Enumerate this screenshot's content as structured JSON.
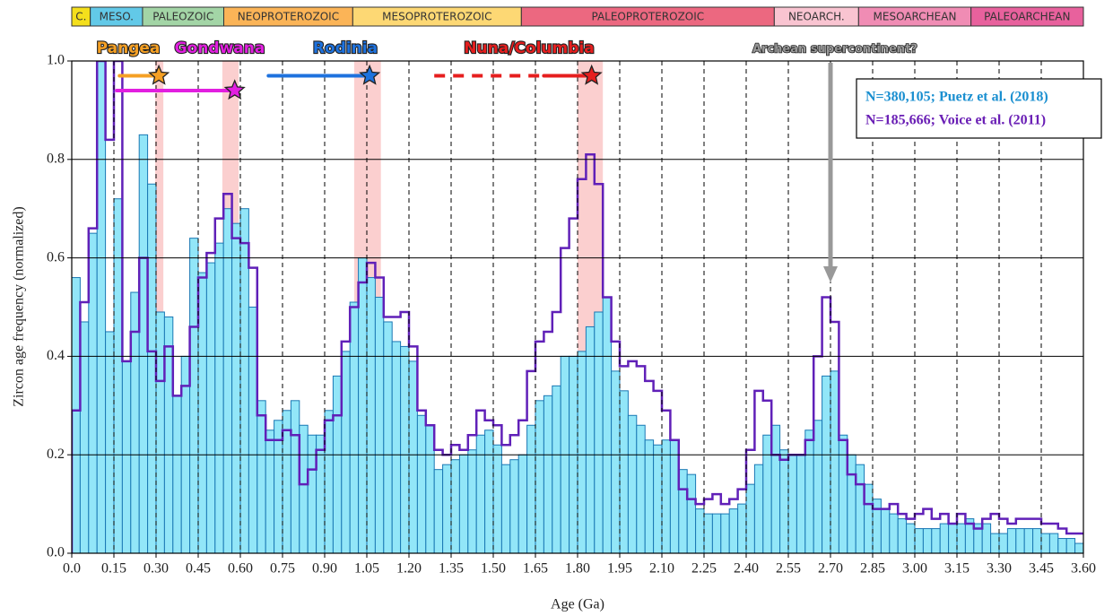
{
  "chart_data": {
    "type": "histogram",
    "xlabel": "Age (Ga)",
    "ylabel": "Zircon age frequency (normalized)",
    "xlim": [
      0,
      3.6
    ],
    "ylim": [
      0,
      1.0
    ],
    "xticks": [
      {
        "value": 0,
        "label": "0.0"
      },
      0.15,
      {
        "value": 0.3,
        "label": "0.30"
      },
      0.45,
      {
        "value": 0.6,
        "label": "0.60"
      },
      0.75,
      {
        "value": 0.9,
        "label": "0.90"
      },
      1.05,
      {
        "value": 1.2,
        "label": "1.20"
      },
      1.35,
      {
        "value": 1.5,
        "label": "1.50"
      },
      1.65,
      {
        "value": 1.8,
        "label": "1.80"
      },
      1.95,
      {
        "value": 2.1,
        "label": "2.10"
      },
      2.25,
      {
        "value": 2.4,
        "label": "2.40"
      },
      2.55,
      {
        "value": 2.7,
        "label": "2.70"
      },
      2.85,
      {
        "value": 3.0,
        "label": "3.00"
      },
      3.15,
      {
        "value": 3.3,
        "label": "3.30"
      },
      3.45,
      {
        "value": 3.6,
        "label": "3.60"
      }
    ],
    "yticks": [
      {
        "value": 0,
        "label": "0.0"
      },
      0.2,
      0.4,
      0.6,
      0.8,
      {
        "value": 1.0,
        "label": "1.0"
      }
    ],
    "grid": true,
    "legend": "upper right",
    "bins": [
      0,
      0.03,
      0.06,
      0.09,
      0.12,
      0.15,
      0.18,
      0.21,
      0.24,
      0.27,
      0.3,
      0.33,
      0.36,
      0.39,
      0.42,
      0.45,
      0.48,
      0.51,
      0.54,
      0.57,
      0.6,
      0.63,
      0.66,
      0.69,
      0.72,
      0.75,
      0.78,
      0.81,
      0.84,
      0.87,
      0.9,
      0.93,
      0.96,
      0.99,
      1.02,
      1.05,
      1.08,
      1.11,
      1.14,
      1.17,
      1.2,
      1.23,
      1.26,
      1.29,
      1.32,
      1.35,
      1.38,
      1.41,
      1.44,
      1.47,
      1.5,
      1.53,
      1.56,
      1.59,
      1.62,
      1.65,
      1.68,
      1.71,
      1.74,
      1.77,
      1.8,
      1.83,
      1.86,
      1.89,
      1.92,
      1.95,
      1.98,
      2.01,
      2.04,
      2.07,
      2.1,
      2.13,
      2.16,
      2.19,
      2.22,
      2.25,
      2.28,
      2.31,
      2.34,
      2.37,
      2.4,
      2.43,
      2.46,
      2.49,
      2.52,
      2.55,
      2.58,
      2.61,
      2.64,
      2.67,
      2.7,
      2.73,
      2.76,
      2.79,
      2.82,
      2.85,
      2.88,
      2.91,
      2.94,
      2.97,
      3.0,
      3.03,
      3.06,
      3.09,
      3.12,
      3.15,
      3.18,
      3.21,
      3.24,
      3.27,
      3.3,
      3.33,
      3.36,
      3.39,
      3.42,
      3.45,
      3.48,
      3.51,
      3.54,
      3.57,
      3.6
    ],
    "series": [
      {
        "name": "N=380,105; Puetz et al. (2018)",
        "style": "bar",
        "color": "#92e6f8",
        "edge_color": "#1a78b4",
        "legend_color": "#1a8fd0",
        "values": [
          0.56,
          0.47,
          0.65,
          1.0,
          0.45,
          0.72,
          0.39,
          0.53,
          0.85,
          0.75,
          0.49,
          0.48,
          0.32,
          0.4,
          0.64,
          0.57,
          0.59,
          0.63,
          0.7,
          0.67,
          0.7,
          0.5,
          0.31,
          0.25,
          0.27,
          0.29,
          0.31,
          0.26,
          0.24,
          0.24,
          0.29,
          0.36,
          0.41,
          0.51,
          0.6,
          0.56,
          0.52,
          0.47,
          0.43,
          0.42,
          0.39,
          0.28,
          0.26,
          0.17,
          0.18,
          0.19,
          0.2,
          0.21,
          0.24,
          0.25,
          0.22,
          0.18,
          0.19,
          0.2,
          0.26,
          0.31,
          0.32,
          0.34,
          0.4,
          0.4,
          0.41,
          0.46,
          0.49,
          0.52,
          0.37,
          0.33,
          0.28,
          0.26,
          0.23,
          0.22,
          0.23,
          0.23,
          0.17,
          0.16,
          0.09,
          0.08,
          0.08,
          0.08,
          0.09,
          0.1,
          0.14,
          0.18,
          0.24,
          0.26,
          0.21,
          0.2,
          0.2,
          0.25,
          0.27,
          0.36,
          0.37,
          0.24,
          0.2,
          0.18,
          0.14,
          0.11,
          0.09,
          0.08,
          0.07,
          0.06,
          0.05,
          0.05,
          0.05,
          0.06,
          0.06,
          0.06,
          0.07,
          0.06,
          0.06,
          0.04,
          0.04,
          0.05,
          0.05,
          0.05,
          0.05,
          0.04,
          0.04,
          0.03,
          0.03,
          0.02
        ]
      },
      {
        "name": "N=185,666; Voice et al. (2011)",
        "style": "step",
        "color": "#6020b8",
        "legend_color": "#6a1fb5",
        "values": [
          0.29,
          0.51,
          0.66,
          1.0,
          0.84,
          1.0,
          0.39,
          0.45,
          0.6,
          0.41,
          0.35,
          0.42,
          0.32,
          0.34,
          0.46,
          0.56,
          0.61,
          0.68,
          0.73,
          0.64,
          0.63,
          0.58,
          0.28,
          0.23,
          0.23,
          0.25,
          0.24,
          0.14,
          0.17,
          0.21,
          0.27,
          0.28,
          0.43,
          0.5,
          0.55,
          0.59,
          0.56,
          0.48,
          0.48,
          0.49,
          0.42,
          0.29,
          0.26,
          0.21,
          0.2,
          0.22,
          0.21,
          0.24,
          0.29,
          0.27,
          0.26,
          0.22,
          0.24,
          0.27,
          0.37,
          0.43,
          0.45,
          0.49,
          0.62,
          0.68,
          0.76,
          0.81,
          0.75,
          0.52,
          0.43,
          0.38,
          0.39,
          0.38,
          0.35,
          0.33,
          0.29,
          0.23,
          0.13,
          0.11,
          0.1,
          0.11,
          0.12,
          0.1,
          0.11,
          0.13,
          0.21,
          0.33,
          0.31,
          0.2,
          0.19,
          0.2,
          0.2,
          0.23,
          0.4,
          0.52,
          0.47,
          0.23,
          0.16,
          0.14,
          0.1,
          0.09,
          0.09,
          0.1,
          0.08,
          0.07,
          0.08,
          0.09,
          0.07,
          0.08,
          0.06,
          0.08,
          0.06,
          0.05,
          0.07,
          0.08,
          0.07,
          0.06,
          0.07,
          0.07,
          0.07,
          0.06,
          0.06,
          0.05,
          0.04,
          0.04
        ]
      }
    ],
    "eras": [
      {
        "name": "C.",
        "start": 0,
        "end": 0.066,
        "color": "#f4df1c"
      },
      {
        "name": "MESO.",
        "start": 0.066,
        "end": 0.252,
        "color": "#62c9e8"
      },
      {
        "name": "PALEOZOIC",
        "start": 0.252,
        "end": 0.541,
        "color": "#a3d5a6"
      },
      {
        "name": "NEOPROTEROZOIC",
        "start": 0.541,
        "end": 1.0,
        "color": "#fbb457"
      },
      {
        "name": "MESOPROTEROZOIC",
        "start": 1.0,
        "end": 1.6,
        "color": "#fdd874"
      },
      {
        "name": "PALEOPROTEROZOIC",
        "start": 1.6,
        "end": 2.5,
        "color": "#ec6880"
      },
      {
        "name": "NEOARCH.",
        "start": 2.5,
        "end": 2.8,
        "color": "#f9c4d1"
      },
      {
        "name": "MESOARCHEAN",
        "start": 2.8,
        "end": 3.2,
        "color": "#f08cb4"
      },
      {
        "name": "PALEOARCHEAN",
        "start": 3.2,
        "end": 3.6,
        "color": "#e8619d"
      }
    ],
    "supercontinents": [
      {
        "name": "Pangea",
        "color": "#f5a024",
        "line": [
          0.17,
          0.31
        ],
        "star": 0.31,
        "y": 0.97,
        "band": [
          0.297,
          0.326
        ]
      },
      {
        "name": "Gondwana",
        "color": "#e21fe0",
        "line": [
          0.16,
          0.58
        ],
        "star": 0.58,
        "y": 0.94,
        "band": [
          0.536,
          0.594
        ]
      },
      {
        "name": "Rodinia",
        "color": "#1e72de",
        "line": [
          0.7,
          1.06
        ],
        "star": 1.06,
        "y": 0.97,
        "band": [
          1.005,
          1.1
        ]
      },
      {
        "name": "Nuna/Columbia",
        "color": "#e61e1e",
        "dashed": [
          1.29,
          1.68
        ],
        "line": [
          1.68,
          1.85
        ],
        "star": 1.85,
        "y": 0.97,
        "band": [
          1.8,
          1.89
        ]
      }
    ],
    "annotation": {
      "label": "Archean supercontinent?",
      "x": 2.7,
      "y": 0.55
    }
  }
}
